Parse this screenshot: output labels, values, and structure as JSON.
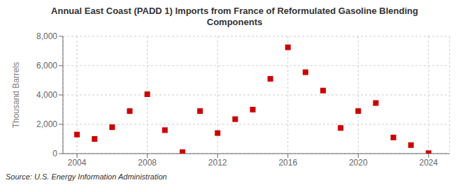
{
  "chart_data": {
    "type": "scatter",
    "title": "Annual East Coast (PADD 1) Imports from France of Reformulated Gasoline Blending\nComponents",
    "y_label": "Thousand Barrels",
    "annotations": [
      "Source: U.S. Energy Information Administration"
    ],
    "x": [
      2004,
      2005,
      2006,
      2007,
      2008,
      2009,
      2010,
      2011,
      2012,
      2013,
      2014,
      2015,
      2016,
      2017,
      2018,
      2019,
      2020,
      2021,
      2022,
      2023,
      2024
    ],
    "values": [
      1300,
      1000,
      1800,
      2900,
      4050,
      1600,
      100,
      2900,
      1400,
      2350,
      3000,
      5100,
      7250,
      5550,
      4300,
      1750,
      2900,
      3450,
      1100,
      580,
      30
    ],
    "color": "#cc0000",
    "marker": "square",
    "xlim": [
      2003.2,
      2025.2
    ],
    "xticks": [
      2004,
      2008,
      2012,
      2016,
      2020,
      2024
    ],
    "ylim": [
      0,
      8000
    ],
    "yticks": [
      0,
      {
        "value": 2000,
        "label": "2,000"
      },
      {
        "value": 4000,
        "label": "4,000"
      },
      {
        "value": 6000,
        "label": "6,000"
      },
      {
        "value": 8000,
        "label": "8,000"
      }
    ],
    "grid": true
  }
}
